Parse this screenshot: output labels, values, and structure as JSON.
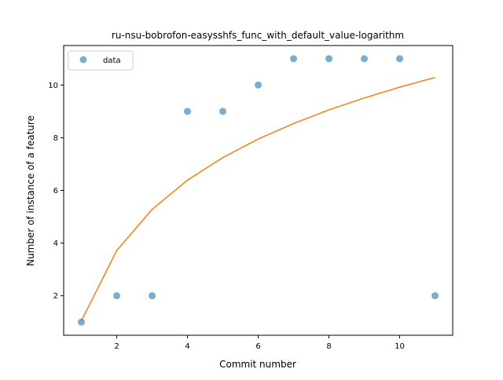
{
  "chart_data": {
    "type": "scatter",
    "title": "ru-nsu-bobrofon-easysshfs_func_with_default_value-logarithm",
    "xlabel": "Commit number",
    "ylabel": "Number of instance of a feature",
    "xlim": [
      0.5,
      11.5
    ],
    "ylim": [
      0.5,
      11.5
    ],
    "xticks": [
      2,
      4,
      6,
      8,
      10
    ],
    "yticks": [
      2,
      4,
      6,
      8,
      10
    ],
    "grid": false,
    "legend": {
      "placement": "top-left",
      "entries": [
        "data"
      ]
    },
    "series": [
      {
        "name": "data",
        "kind": "scatter",
        "color": "#1f77b4",
        "x": [
          1,
          2,
          3,
          4,
          5,
          6,
          7,
          8,
          9,
          10,
          11
        ],
        "y": [
          1,
          2,
          2,
          9,
          9,
          10,
          11,
          11,
          11,
          11,
          2
        ]
      },
      {
        "kind": "line",
        "color": "#ff7f0e",
        "x": [
          1,
          2,
          3,
          4,
          5,
          6,
          7,
          8,
          9,
          10,
          11
        ],
        "y": [
          1.05,
          3.72,
          5.28,
          6.39,
          7.25,
          7.95,
          8.54,
          9.06,
          9.51,
          9.92,
          10.29
        ]
      }
    ]
  }
}
